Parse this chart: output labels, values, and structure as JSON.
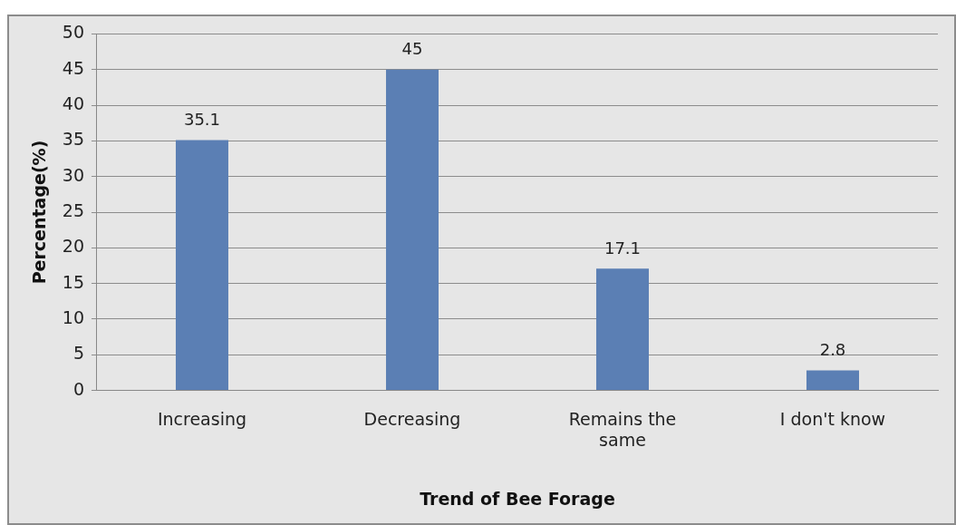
{
  "chart_data": {
    "type": "bar",
    "xlabel": "Trend of Bee Forage",
    "ylabel": "Percentage(%)",
    "categories": [
      "Increasing",
      "Decreasing",
      "Remains the same",
      "I don't know"
    ],
    "values": [
      35.1,
      45,
      17.1,
      2.8
    ],
    "color": "#5b7fb4",
    "ylim": [
      0,
      50
    ],
    "yticks": [
      0,
      5,
      10,
      15,
      20,
      25,
      30,
      35,
      40,
      45,
      50
    ],
    "grid": "y",
    "data_labels": true,
    "legend": false
  }
}
